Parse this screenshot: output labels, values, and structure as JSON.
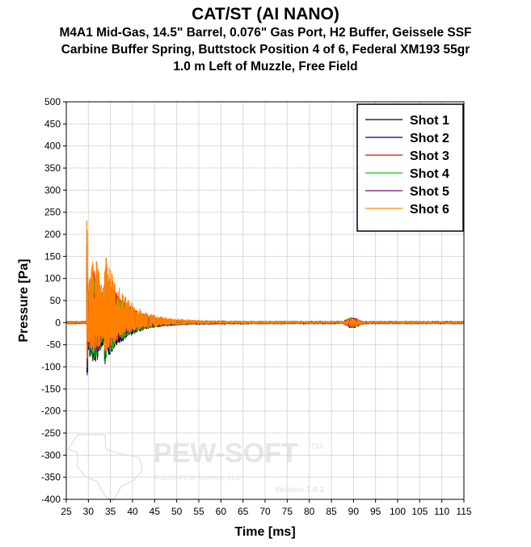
{
  "chart_data": {
    "type": "line",
    "title": "CAT/ST (AI NANO)",
    "subtitle_lines": [
      "M4A1 Mid-Gas, 14.5\" Barrel, 0.076\" Gas Port, H2 Buffer, Geissele SSF",
      "Carbine Buffer Spring, Buttstock Position 4 of 6, Federal XM193 55gr",
      "1.0 m Left of Muzzle, Free Field"
    ],
    "xlabel": "Time [ms]",
    "ylabel": "Pressure [Pa]",
    "xlim": [
      25,
      115
    ],
    "ylim": [
      -400,
      500
    ],
    "xticks": [
      25,
      30,
      35,
      40,
      45,
      50,
      55,
      60,
      65,
      70,
      75,
      80,
      85,
      90,
      95,
      100,
      105,
      110,
      115
    ],
    "yticks": [
      500,
      450,
      400,
      350,
      300,
      250,
      200,
      150,
      100,
      50,
      0,
      -50,
      -100,
      -150,
      -200,
      -250,
      -300,
      -350,
      -400
    ],
    "grid": true,
    "legend_position": "top-right",
    "onset_ms": 29.6,
    "reflection_ms": 89.8,
    "series": [
      {
        "name": "Shot 1",
        "color": "#000000",
        "peak_pa": 120,
        "trough_pa": -140,
        "seed": 11
      },
      {
        "name": "Shot 2",
        "color": "#000080",
        "peak_pa": 110,
        "trough_pa": -130,
        "seed": 23
      },
      {
        "name": "Shot 3",
        "color": "#ff0000",
        "peak_pa": 175,
        "trough_pa": -110,
        "seed": 37
      },
      {
        "name": "Shot 4",
        "color": "#00cc00",
        "peak_pa": 155,
        "trough_pa": -125,
        "seed": 41
      },
      {
        "name": "Shot 5",
        "color": "#800080",
        "peak_pa": 100,
        "trough_pa": -105,
        "seed": 53
      },
      {
        "name": "Shot 6",
        "color": "#ff8000",
        "peak_pa": 230,
        "trough_pa": -100,
        "seed": 67
      }
    ]
  },
  "watermark": {
    "brand": "PEW-SOFT",
    "trademark": "TM",
    "copyright": "© 2023 PEW Science, LLC",
    "version": "Version 1.0.2"
  }
}
